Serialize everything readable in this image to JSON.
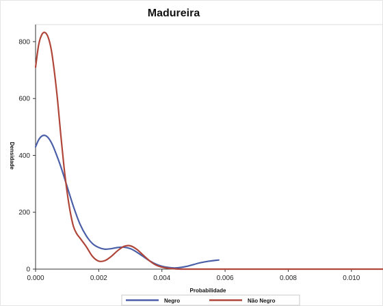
{
  "chart_data": {
    "type": "line",
    "title": "Madureira",
    "xlabel": "Probabilidade",
    "ylabel": "Densidade",
    "xlim": [
      0,
      0.011
    ],
    "ylim": [
      0,
      860
    ],
    "x_ticks": [
      0,
      0.002,
      0.004,
      0.006,
      0.008,
      0.01
    ],
    "x_tick_labels": [
      "0.000",
      "0.002",
      "0.004",
      "0.006",
      "0.008",
      "0.010"
    ],
    "y_ticks": [
      0,
      200,
      400,
      600,
      800
    ],
    "y_tick_labels": [
      "0",
      "200",
      "400",
      "600",
      "800"
    ],
    "grid": false,
    "legend_position": "bottom",
    "series": [
      {
        "name": "Negro",
        "color": "#4a5fa8",
        "points": [
          [
            0.0,
            430
          ],
          [
            0.0001,
            455
          ],
          [
            0.0002,
            468
          ],
          [
            0.0003,
            470
          ],
          [
            0.0004,
            462
          ],
          [
            0.0005,
            445
          ],
          [
            0.0006,
            420
          ],
          [
            0.0008,
            360
          ],
          [
            0.001,
            290
          ],
          [
            0.0012,
            220
          ],
          [
            0.0014,
            160
          ],
          [
            0.0016,
            118
          ],
          [
            0.0018,
            90
          ],
          [
            0.002,
            76
          ],
          [
            0.0022,
            70
          ],
          [
            0.0024,
            72
          ],
          [
            0.0026,
            76
          ],
          [
            0.0028,
            77
          ],
          [
            0.003,
            72
          ],
          [
            0.0032,
            60
          ],
          [
            0.0034,
            45
          ],
          [
            0.0036,
            30
          ],
          [
            0.0038,
            18
          ],
          [
            0.004,
            10
          ],
          [
            0.0042,
            6
          ],
          [
            0.0044,
            4
          ],
          [
            0.0046,
            6
          ],
          [
            0.0048,
            10
          ],
          [
            0.005,
            16
          ],
          [
            0.0052,
            22
          ],
          [
            0.0055,
            28
          ],
          [
            0.0058,
            32
          ]
        ]
      },
      {
        "name": "Não Negro",
        "color": "#b0463a",
        "points": [
          [
            0.0,
            710
          ],
          [
            0.0001,
            790
          ],
          [
            0.0002,
            825
          ],
          [
            0.0003,
            832
          ],
          [
            0.0004,
            815
          ],
          [
            0.0005,
            770
          ],
          [
            0.0006,
            690
          ],
          [
            0.0007,
            590
          ],
          [
            0.0008,
            470
          ],
          [
            0.0009,
            360
          ],
          [
            0.001,
            270
          ],
          [
            0.0011,
            200
          ],
          [
            0.0012,
            150
          ],
          [
            0.0013,
            125
          ],
          [
            0.0014,
            110
          ],
          [
            0.0016,
            80
          ],
          [
            0.0018,
            45
          ],
          [
            0.002,
            28
          ],
          [
            0.0022,
            30
          ],
          [
            0.0024,
            45
          ],
          [
            0.0026,
            65
          ],
          [
            0.0028,
            80
          ],
          [
            0.003,
            82
          ],
          [
            0.0032,
            70
          ],
          [
            0.0034,
            50
          ],
          [
            0.0036,
            30
          ],
          [
            0.0038,
            15
          ],
          [
            0.004,
            7
          ],
          [
            0.0042,
            3
          ],
          [
            0.0044,
            1
          ],
          [
            0.0046,
            0
          ],
          [
            0.005,
            0
          ],
          [
            0.006,
            0
          ],
          [
            0.008,
            0
          ],
          [
            0.01,
            0
          ],
          [
            0.011,
            0
          ]
        ]
      }
    ]
  }
}
